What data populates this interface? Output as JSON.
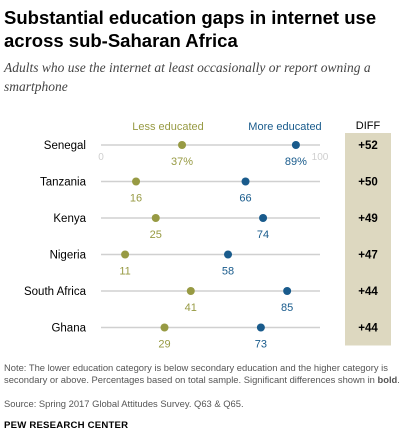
{
  "title": "Substantial education gaps in internet use across sub-Saharan Africa",
  "subtitle": "Adults who use the internet at least occasionally or report owning a smartphone",
  "note_prefix": "Note: The lower education category is below secondary education and the higher category is secondary or above. Percentages based on total sample. Significant differences shown in ",
  "note_bold": "bold",
  "note_suffix": ".",
  "source": "Source: Spring 2017 Global Attitudes Survey. Q63 & Q65.",
  "footer": "PEW RESEARCH CENTER",
  "colors": {
    "less_educated": "#979a43",
    "more_educated": "#195b8c",
    "diff_band": "#ddd8c0",
    "axis_line": "#d0d0d0",
    "axis_ticks": "#cfcfcf"
  },
  "chart_data": {
    "type": "dot",
    "diff_header": "DIFF",
    "xlim": [
      0,
      100
    ],
    "axis_tick_labels": [
      "0",
      "100"
    ],
    "series": [
      {
        "name": "Less educated",
        "color": "#979a43"
      },
      {
        "name": "More educated",
        "color": "#195b8c"
      }
    ],
    "rows": [
      {
        "country": "Senegal",
        "less": 37,
        "more": 89,
        "less_label": "37%",
        "more_label": "89%",
        "diff": "+52"
      },
      {
        "country": "Tanzania",
        "less": 16,
        "more": 66,
        "less_label": "16",
        "more_label": "66",
        "diff": "+50"
      },
      {
        "country": "Kenya",
        "less": 25,
        "more": 74,
        "less_label": "25",
        "more_label": "74",
        "diff": "+49"
      },
      {
        "country": "Nigeria",
        "less": 11,
        "more": 58,
        "less_label": "11",
        "more_label": "58",
        "diff": "+47"
      },
      {
        "country": "South Africa",
        "less": 41,
        "more": 85,
        "less_label": "41",
        "more_label": "85",
        "diff": "+44"
      },
      {
        "country": "Ghana",
        "less": 29,
        "more": 73,
        "less_label": "29",
        "more_label": "73",
        "diff": "+44"
      }
    ]
  }
}
